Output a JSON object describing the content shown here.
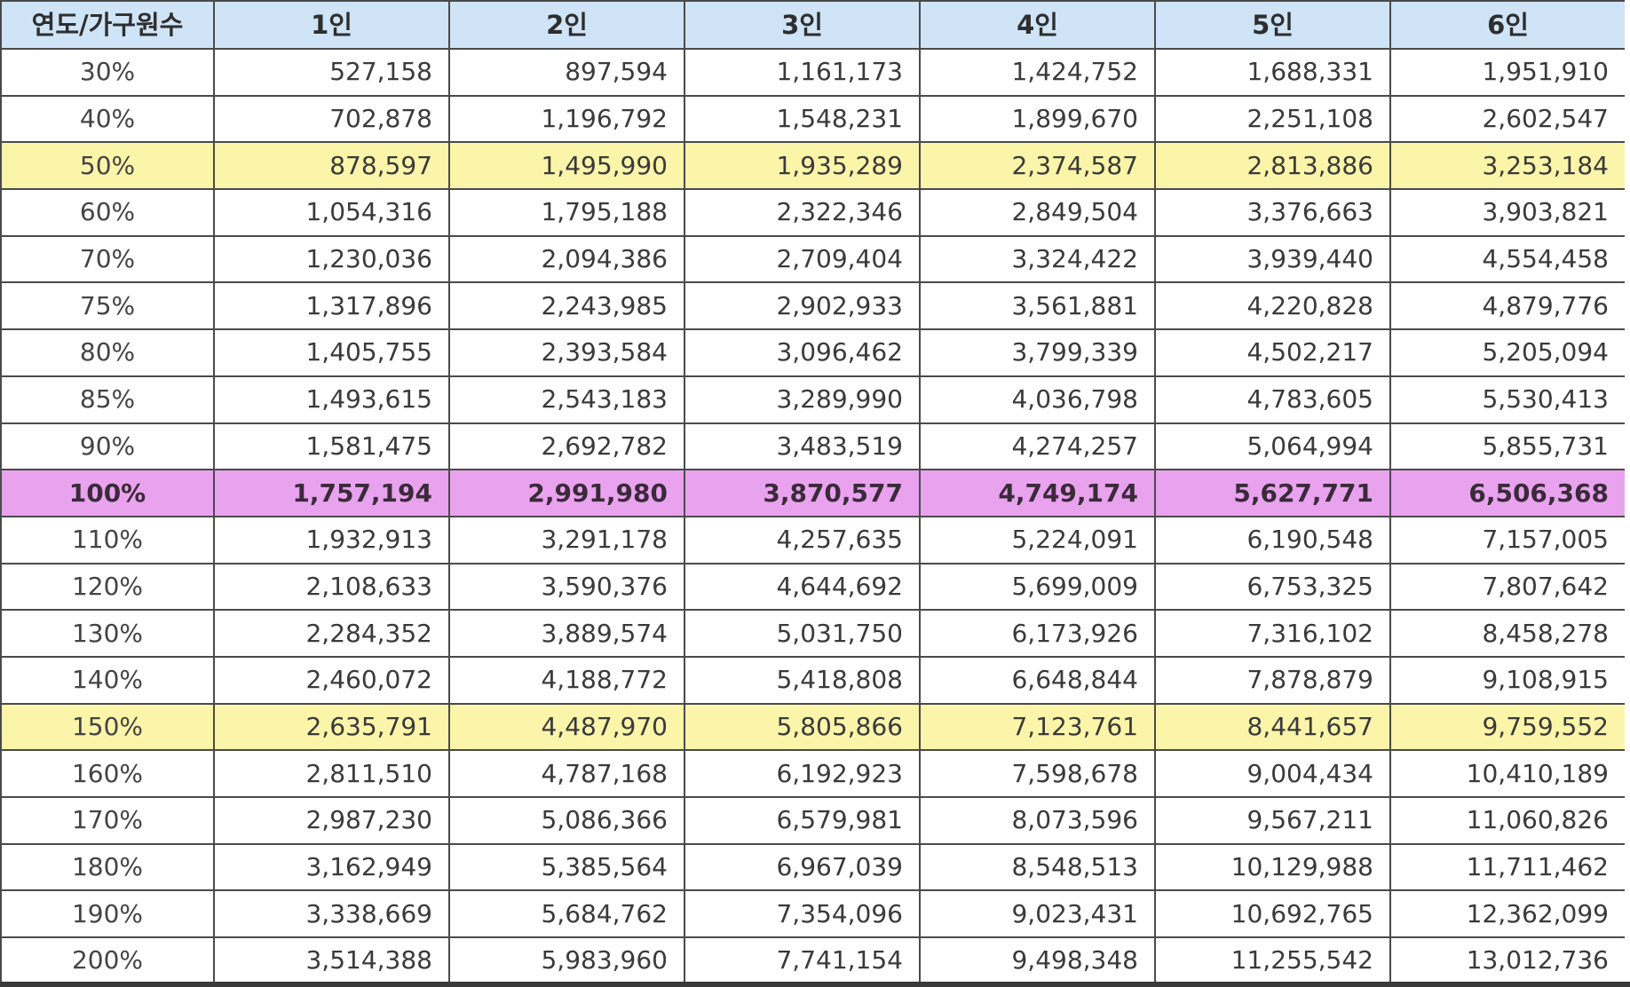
{
  "table": {
    "headers": [
      "연도/가구원수",
      "1인",
      "2인",
      "3인",
      "4인",
      "5인",
      "6인"
    ],
    "rows": [
      {
        "label": "30%",
        "style": "normal",
        "values": [
          "527,158",
          "897,594",
          "1,161,173",
          "1,424,752",
          "1,688,331",
          "1,951,910"
        ]
      },
      {
        "label": "40%",
        "style": "normal",
        "values": [
          "702,878",
          "1,196,792",
          "1,548,231",
          "1,899,670",
          "2,251,108",
          "2,602,547"
        ]
      },
      {
        "label": "50%",
        "style": "yellow",
        "values": [
          "878,597",
          "1,495,990",
          "1,935,289",
          "2,374,587",
          "2,813,886",
          "3,253,184"
        ]
      },
      {
        "label": "60%",
        "style": "normal",
        "values": [
          "1,054,316",
          "1,795,188",
          "2,322,346",
          "2,849,504",
          "3,376,663",
          "3,903,821"
        ]
      },
      {
        "label": "70%",
        "style": "normal",
        "values": [
          "1,230,036",
          "2,094,386",
          "2,709,404",
          "3,324,422",
          "3,939,440",
          "4,554,458"
        ]
      },
      {
        "label": "75%",
        "style": "normal",
        "values": [
          "1,317,896",
          "2,243,985",
          "2,902,933",
          "3,561,881",
          "4,220,828",
          "4,879,776"
        ]
      },
      {
        "label": "80%",
        "style": "normal",
        "values": [
          "1,405,755",
          "2,393,584",
          "3,096,462",
          "3,799,339",
          "4,502,217",
          "5,205,094"
        ]
      },
      {
        "label": "85%",
        "style": "normal",
        "values": [
          "1,493,615",
          "2,543,183",
          "3,289,990",
          "4,036,798",
          "4,783,605",
          "5,530,413"
        ]
      },
      {
        "label": "90%",
        "style": "normal",
        "values": [
          "1,581,475",
          "2,692,782",
          "3,483,519",
          "4,274,257",
          "5,064,994",
          "5,855,731"
        ]
      },
      {
        "label": "100%",
        "style": "pink",
        "values": [
          "1,757,194",
          "2,991,980",
          "3,870,577",
          "4,749,174",
          "5,627,771",
          "6,506,368"
        ]
      },
      {
        "label": "110%",
        "style": "normal",
        "values": [
          "1,932,913",
          "3,291,178",
          "4,257,635",
          "5,224,091",
          "6,190,548",
          "7,157,005"
        ]
      },
      {
        "label": "120%",
        "style": "normal",
        "values": [
          "2,108,633",
          "3,590,376",
          "4,644,692",
          "5,699,009",
          "6,753,325",
          "7,807,642"
        ]
      },
      {
        "label": "130%",
        "style": "normal",
        "values": [
          "2,284,352",
          "3,889,574",
          "5,031,750",
          "6,173,926",
          "7,316,102",
          "8,458,278"
        ]
      },
      {
        "label": "140%",
        "style": "normal",
        "values": [
          "2,460,072",
          "4,188,772",
          "5,418,808",
          "6,648,844",
          "7,878,879",
          "9,108,915"
        ]
      },
      {
        "label": "150%",
        "style": "yellow",
        "values": [
          "2,635,791",
          "4,487,970",
          "5,805,866",
          "7,123,761",
          "8,441,657",
          "9,759,552"
        ]
      },
      {
        "label": "160%",
        "style": "normal",
        "values": [
          "2,811,510",
          "4,787,168",
          "6,192,923",
          "7,598,678",
          "9,004,434",
          "10,410,189"
        ]
      },
      {
        "label": "170%",
        "style": "normal",
        "values": [
          "2,987,230",
          "5,086,366",
          "6,579,981",
          "8,073,596",
          "9,567,211",
          "11,060,826"
        ]
      },
      {
        "label": "180%",
        "style": "normal",
        "values": [
          "3,162,949",
          "5,385,564",
          "6,967,039",
          "8,548,513",
          "10,129,988",
          "11,711,462"
        ]
      },
      {
        "label": "190%",
        "style": "normal",
        "values": [
          "3,338,669",
          "5,684,762",
          "7,354,096",
          "9,023,431",
          "10,692,765",
          "12,362,099"
        ]
      },
      {
        "label": "200%",
        "style": "normal",
        "values": [
          "3,514,388",
          "5,983,960",
          "7,741,154",
          "9,498,348",
          "11,255,542",
          "13,012,736"
        ]
      }
    ]
  },
  "colors": {
    "header_bg": "#cfe4f7",
    "highlight_yellow": "#fbf5aa",
    "highlight_pink": "#e9a3ee",
    "border": "#4a4a4a"
  }
}
